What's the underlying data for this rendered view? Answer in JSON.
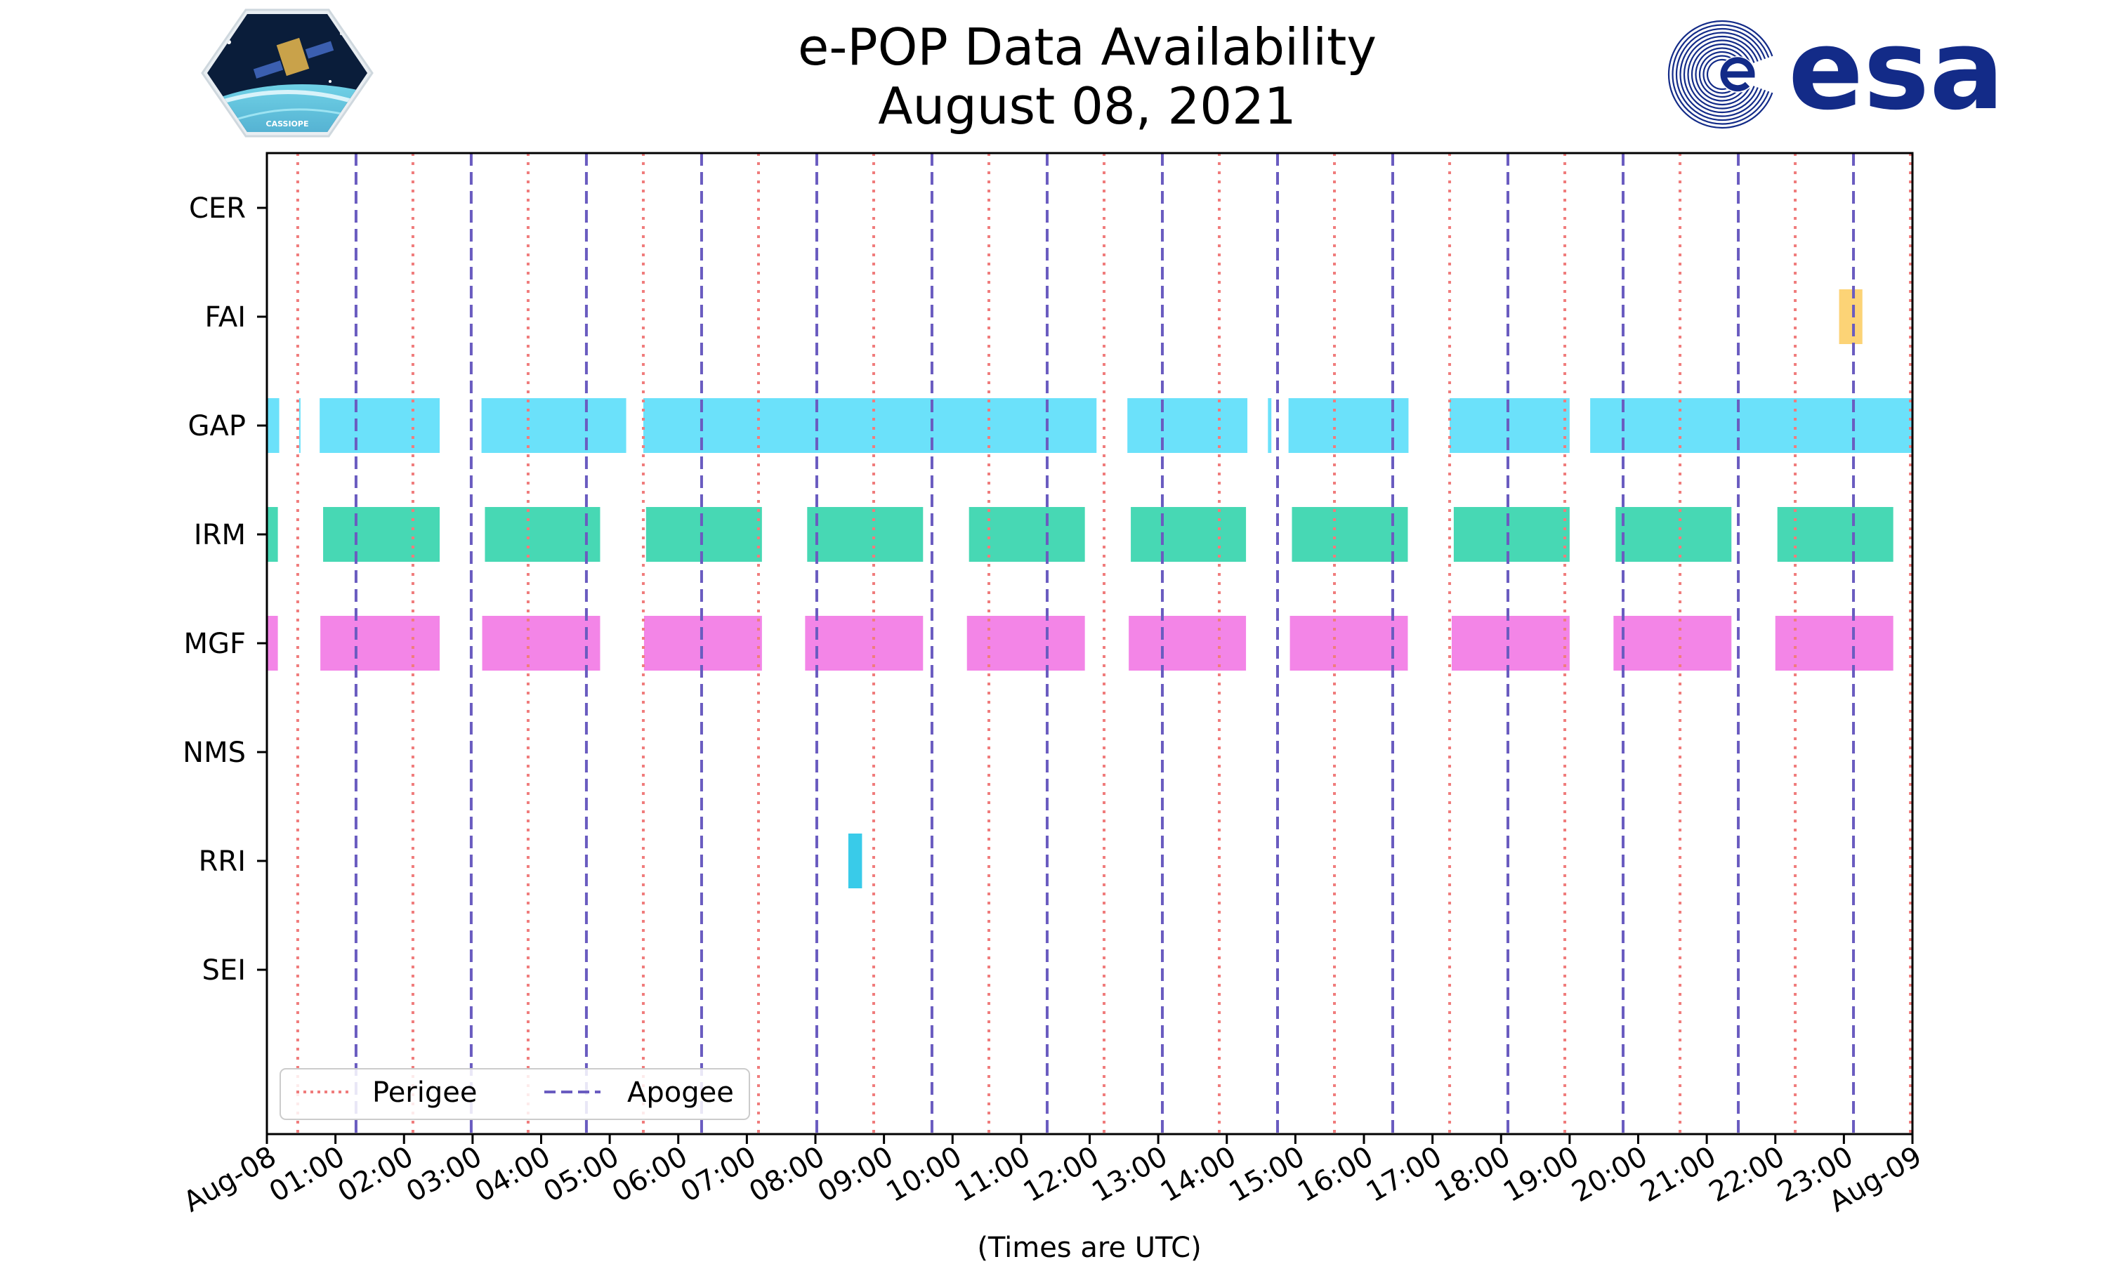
{
  "chart_data": {
    "type": "timeline",
    "title_lines": [
      "e-POP Data Availability",
      "August 08, 2021"
    ],
    "xlabel": "(Times are UTC)",
    "x_range_hours": [
      0,
      24
    ],
    "x_ticks": [
      {
        "h": 0,
        "label": "Aug-08"
      },
      {
        "h": 1,
        "label": "01:00"
      },
      {
        "h": 2,
        "label": "02:00"
      },
      {
        "h": 3,
        "label": "03:00"
      },
      {
        "h": 4,
        "label": "04:00"
      },
      {
        "h": 5,
        "label": "05:00"
      },
      {
        "h": 6,
        "label": "06:00"
      },
      {
        "h": 7,
        "label": "07:00"
      },
      {
        "h": 8,
        "label": "08:00"
      },
      {
        "h": 9,
        "label": "09:00"
      },
      {
        "h": 10,
        "label": "10:00"
      },
      {
        "h": 11,
        "label": "11:00"
      },
      {
        "h": 12,
        "label": "12:00"
      },
      {
        "h": 13,
        "label": "13:00"
      },
      {
        "h": 14,
        "label": "14:00"
      },
      {
        "h": 15,
        "label": "15:00"
      },
      {
        "h": 16,
        "label": "16:00"
      },
      {
        "h": 17,
        "label": "17:00"
      },
      {
        "h": 18,
        "label": "18:00"
      },
      {
        "h": 19,
        "label": "19:00"
      },
      {
        "h": 20,
        "label": "20:00"
      },
      {
        "h": 21,
        "label": "21:00"
      },
      {
        "h": 22,
        "label": "22:00"
      },
      {
        "h": 23,
        "label": "23:00"
      },
      {
        "h": 24,
        "label": "Aug-09"
      }
    ],
    "instruments": [
      {
        "name": "CER",
        "color": "#f5c15c",
        "intervals": []
      },
      {
        "name": "FAI",
        "color": "#fcd16f",
        "intervals": [
          [
            22.93,
            23.27
          ]
        ]
      },
      {
        "name": "GAP",
        "color": "#63dffa",
        "intervals": [
          [
            0.0,
            0.18
          ],
          [
            0.47,
            0.49
          ],
          [
            0.77,
            2.52
          ],
          [
            3.13,
            5.24
          ],
          [
            5.49,
            12.1
          ],
          [
            12.55,
            14.3
          ],
          [
            14.6,
            14.65
          ],
          [
            14.9,
            16.65
          ],
          [
            17.25,
            19.0
          ],
          [
            19.3,
            24.0
          ]
        ]
      },
      {
        "name": "IRM",
        "color": "#3dd6b0",
        "intervals": [
          [
            0.0,
            0.16
          ],
          [
            0.82,
            2.52
          ],
          [
            3.18,
            4.86
          ],
          [
            5.53,
            7.22
          ],
          [
            7.88,
            9.57
          ],
          [
            10.24,
            11.93
          ],
          [
            12.6,
            14.28
          ],
          [
            14.95,
            16.64
          ],
          [
            17.31,
            19.0
          ],
          [
            19.67,
            21.36
          ],
          [
            22.03,
            23.72
          ]
        ]
      },
      {
        "name": "MGF",
        "color": "#f27ee6",
        "intervals": [
          [
            0.0,
            0.16
          ],
          [
            0.78,
            2.52
          ],
          [
            3.14,
            4.86
          ],
          [
            5.5,
            7.22
          ],
          [
            7.85,
            9.57
          ],
          [
            10.21,
            11.93
          ],
          [
            12.57,
            14.28
          ],
          [
            14.92,
            16.64
          ],
          [
            17.28,
            19.0
          ],
          [
            19.64,
            21.36
          ],
          [
            22.0,
            23.72
          ]
        ]
      },
      {
        "name": "NMS",
        "color": "#888888",
        "intervals": []
      },
      {
        "name": "RRI",
        "color": "#2ec8e8",
        "intervals": [
          [
            8.48,
            8.68
          ]
        ]
      },
      {
        "name": "SEI",
        "color": "#888888",
        "intervals": []
      }
    ],
    "perigee_hours": [
      0.45,
      2.13,
      3.81,
      5.49,
      7.17,
      8.85,
      10.53,
      12.21,
      13.89,
      15.57,
      17.25,
      18.93,
      20.61,
      22.29,
      23.97
    ],
    "apogee_hours": [
      1.3,
      2.98,
      4.66,
      6.34,
      8.02,
      9.7,
      11.38,
      13.06,
      14.74,
      16.42,
      18.1,
      19.78,
      21.46,
      23.14
    ],
    "perigee_color": "#f07c7c",
    "apogee_color": "#6a5cc0",
    "legend": {
      "position": "lower-left",
      "entries": [
        {
          "label": "Perigee",
          "style": "dotted",
          "color": "#f07c7c"
        },
        {
          "label": "Apogee",
          "style": "dashed",
          "color": "#6a5cc0"
        }
      ]
    }
  },
  "logos": {
    "cassiope_badge_text": "CASSIOPE",
    "esa_text": "esa",
    "esa_color": "#132b88"
  }
}
